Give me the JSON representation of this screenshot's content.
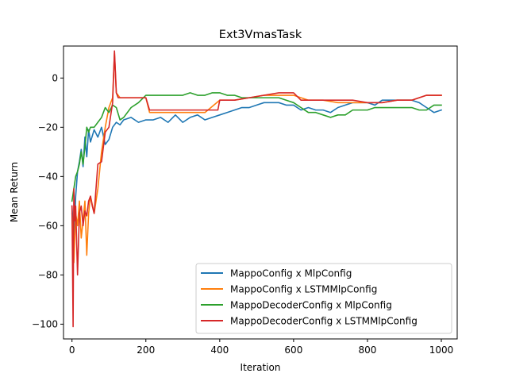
{
  "chart_data": {
    "type": "line",
    "title": "Ext3VmasTask",
    "xlabel": "Iteration",
    "ylabel": "Mean Return",
    "xlim": [
      -23,
      1043
    ],
    "ylim": [
      -106,
      13
    ],
    "xticks": [
      0,
      200,
      400,
      600,
      800,
      1000
    ],
    "yticks": [
      -100,
      -80,
      -60,
      -40,
      -20,
      0
    ],
    "xtick_labels": [
      "0",
      "200",
      "400",
      "600",
      "800",
      "1000"
    ],
    "ytick_labels": [
      "−100",
      "−80",
      "−60",
      "−40",
      "−20",
      "0"
    ],
    "grid": false,
    "legend_position": "lower-right",
    "series": [
      {
        "name": "MappoConfig x MlpConfig",
        "color": "#1f77b4",
        "points": [
          [
            0,
            -52
          ],
          [
            5,
            -66
          ],
          [
            10,
            -48
          ],
          [
            15,
            -38
          ],
          [
            20,
            -34
          ],
          [
            25,
            -29
          ],
          [
            30,
            -36
          ],
          [
            35,
            -24
          ],
          [
            40,
            -32
          ],
          [
            45,
            -21
          ],
          [
            50,
            -26
          ],
          [
            60,
            -21
          ],
          [
            70,
            -24
          ],
          [
            80,
            -20
          ],
          [
            90,
            -27
          ],
          [
            100,
            -25
          ],
          [
            110,
            -20
          ],
          [
            120,
            -18
          ],
          [
            130,
            -19
          ],
          [
            140,
            -17
          ],
          [
            160,
            -16
          ],
          [
            180,
            -18
          ],
          [
            200,
            -17
          ],
          [
            220,
            -17
          ],
          [
            240,
            -16
          ],
          [
            260,
            -18
          ],
          [
            280,
            -15
          ],
          [
            300,
            -18
          ],
          [
            320,
            -16
          ],
          [
            340,
            -15
          ],
          [
            360,
            -17
          ],
          [
            380,
            -16
          ],
          [
            400,
            -15
          ],
          [
            420,
            -14
          ],
          [
            440,
            -13
          ],
          [
            460,
            -12
          ],
          [
            480,
            -12
          ],
          [
            500,
            -11
          ],
          [
            520,
            -10
          ],
          [
            540,
            -10
          ],
          [
            560,
            -10
          ],
          [
            580,
            -11
          ],
          [
            600,
            -11
          ],
          [
            620,
            -13
          ],
          [
            640,
            -12
          ],
          [
            660,
            -13
          ],
          [
            680,
            -13
          ],
          [
            700,
            -14
          ],
          [
            720,
            -12
          ],
          [
            740,
            -11
          ],
          [
            760,
            -10
          ],
          [
            780,
            -10
          ],
          [
            800,
            -10
          ],
          [
            820,
            -11
          ],
          [
            840,
            -9
          ],
          [
            860,
            -9
          ],
          [
            880,
            -9
          ],
          [
            900,
            -9
          ],
          [
            920,
            -9
          ],
          [
            940,
            -10
          ],
          [
            960,
            -12
          ],
          [
            980,
            -14
          ],
          [
            1000,
            -13
          ]
        ]
      },
      {
        "name": "MappoConfig x LSTMMlpConfig",
        "color": "#ff7f0e",
        "points": [
          [
            0,
            -55
          ],
          [
            5,
            -75
          ],
          [
            10,
            -55
          ],
          [
            15,
            -60
          ],
          [
            20,
            -50
          ],
          [
            25,
            -65
          ],
          [
            30,
            -58
          ],
          [
            35,
            -50
          ],
          [
            40,
            -72
          ],
          [
            45,
            -55
          ],
          [
            50,
            -48
          ],
          [
            60,
            -55
          ],
          [
            70,
            -45
          ],
          [
            80,
            -30
          ],
          [
            90,
            -20
          ],
          [
            100,
            -12
          ],
          [
            110,
            -8
          ],
          [
            115,
            10
          ],
          [
            120,
            -6
          ],
          [
            130,
            -8
          ],
          [
            140,
            -8
          ],
          [
            160,
            -8
          ],
          [
            180,
            -8
          ],
          [
            200,
            -8
          ],
          [
            210,
            -14
          ],
          [
            240,
            -14
          ],
          [
            280,
            -14
          ],
          [
            320,
            -14
          ],
          [
            360,
            -14
          ],
          [
            400,
            -9
          ],
          [
            440,
            -9
          ],
          [
            480,
            -8
          ],
          [
            520,
            -7
          ],
          [
            560,
            -7
          ],
          [
            600,
            -7
          ],
          [
            640,
            -9
          ],
          [
            680,
            -9
          ],
          [
            720,
            -10
          ],
          [
            760,
            -10
          ],
          [
            800,
            -10
          ],
          [
            840,
            -10
          ],
          [
            880,
            -9
          ],
          [
            920,
            -9
          ],
          [
            960,
            -7
          ],
          [
            1000,
            -7
          ]
        ]
      },
      {
        "name": "MappoDecoderConfig x MlpConfig",
        "color": "#2ca02c",
        "points": [
          [
            0,
            -50
          ],
          [
            5,
            -45
          ],
          [
            10,
            -40
          ],
          [
            15,
            -38
          ],
          [
            20,
            -35
          ],
          [
            25,
            -30
          ],
          [
            30,
            -35
          ],
          [
            35,
            -28
          ],
          [
            40,
            -20
          ],
          [
            45,
            -22
          ],
          [
            50,
            -20
          ],
          [
            60,
            -20
          ],
          [
            70,
            -18
          ],
          [
            80,
            -16
          ],
          [
            90,
            -12
          ],
          [
            100,
            -14
          ],
          [
            110,
            -11
          ],
          [
            120,
            -12
          ],
          [
            130,
            -17
          ],
          [
            140,
            -16
          ],
          [
            160,
            -12
          ],
          [
            180,
            -10
          ],
          [
            200,
            -7
          ],
          [
            220,
            -7
          ],
          [
            240,
            -7
          ],
          [
            260,
            -7
          ],
          [
            280,
            -7
          ],
          [
            300,
            -7
          ],
          [
            320,
            -6
          ],
          [
            340,
            -7
          ],
          [
            360,
            -7
          ],
          [
            380,
            -6
          ],
          [
            400,
            -6
          ],
          [
            420,
            -7
          ],
          [
            440,
            -7
          ],
          [
            460,
            -8
          ],
          [
            480,
            -8
          ],
          [
            500,
            -8
          ],
          [
            520,
            -8
          ],
          [
            540,
            -8
          ],
          [
            560,
            -8
          ],
          [
            580,
            -9
          ],
          [
            600,
            -10
          ],
          [
            620,
            -12
          ],
          [
            640,
            -14
          ],
          [
            660,
            -14
          ],
          [
            680,
            -15
          ],
          [
            700,
            -16
          ],
          [
            720,
            -15
          ],
          [
            740,
            -15
          ],
          [
            760,
            -13
          ],
          [
            780,
            -13
          ],
          [
            800,
            -13
          ],
          [
            820,
            -12
          ],
          [
            840,
            -12
          ],
          [
            860,
            -12
          ],
          [
            880,
            -12
          ],
          [
            900,
            -12
          ],
          [
            920,
            -12
          ],
          [
            940,
            -13
          ],
          [
            960,
            -13
          ],
          [
            980,
            -11
          ],
          [
            1000,
            -11
          ]
        ]
      },
      {
        "name": "MappoDecoderConfig x LSTMMlpConfig",
        "color": "#d62728",
        "points": [
          [
            0,
            -52
          ],
          [
            3,
            -101
          ],
          [
            5,
            -45
          ],
          [
            8,
            -58
          ],
          [
            10,
            -52
          ],
          [
            15,
            -80
          ],
          [
            20,
            -55
          ],
          [
            25,
            -52
          ],
          [
            30,
            -60
          ],
          [
            35,
            -54
          ],
          [
            40,
            -56
          ],
          [
            45,
            -50
          ],
          [
            50,
            -48
          ],
          [
            55,
            -52
          ],
          [
            60,
            -55
          ],
          [
            70,
            -35
          ],
          [
            80,
            -34
          ],
          [
            90,
            -22
          ],
          [
            100,
            -20
          ],
          [
            110,
            -10
          ],
          [
            115,
            11
          ],
          [
            120,
            -6
          ],
          [
            125,
            -8
          ],
          [
            130,
            -8
          ],
          [
            140,
            -8
          ],
          [
            160,
            -8
          ],
          [
            180,
            -8
          ],
          [
            200,
            -8
          ],
          [
            210,
            -13
          ],
          [
            240,
            -13
          ],
          [
            280,
            -13
          ],
          [
            320,
            -13
          ],
          [
            360,
            -13
          ],
          [
            395,
            -13
          ],
          [
            400,
            -9
          ],
          [
            440,
            -9
          ],
          [
            480,
            -8
          ],
          [
            520,
            -7
          ],
          [
            560,
            -6
          ],
          [
            600,
            -6
          ],
          [
            620,
            -9
          ],
          [
            640,
            -9
          ],
          [
            680,
            -9
          ],
          [
            720,
            -9
          ],
          [
            760,
            -9
          ],
          [
            800,
            -10
          ],
          [
            840,
            -10
          ],
          [
            880,
            -9
          ],
          [
            920,
            -9
          ],
          [
            940,
            -8
          ],
          [
            960,
            -7
          ],
          [
            1000,
            -7
          ]
        ]
      }
    ]
  }
}
